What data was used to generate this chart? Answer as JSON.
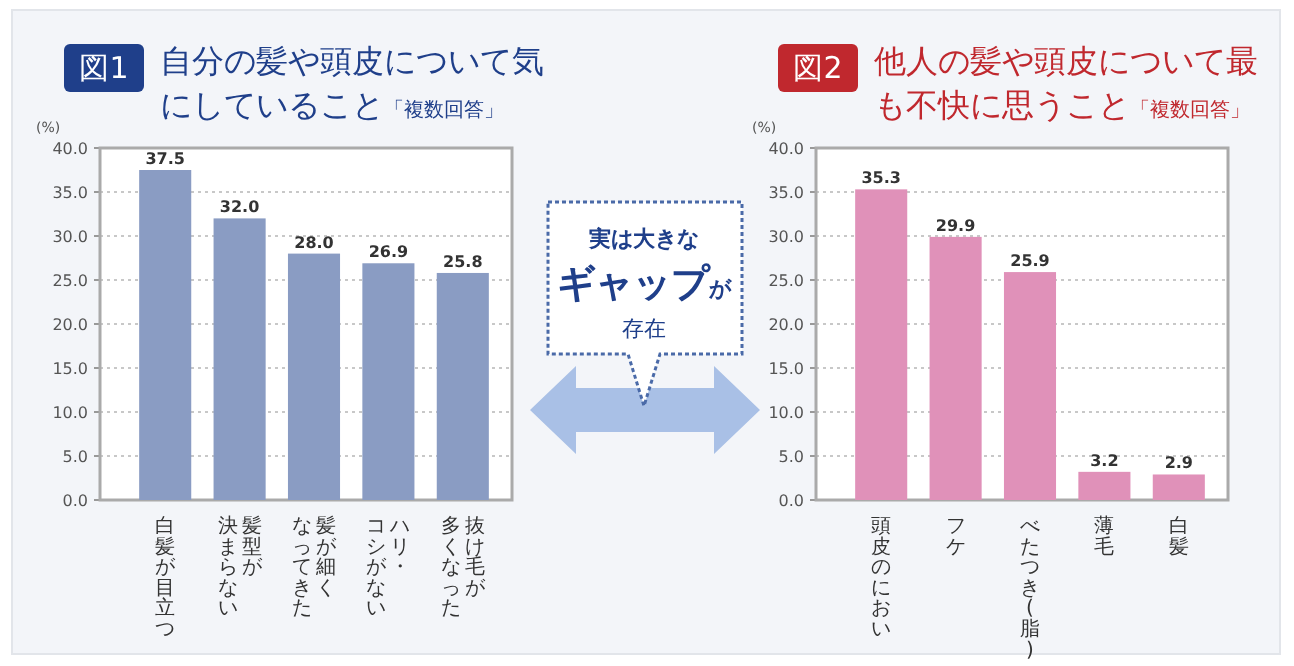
{
  "chart_data": [
    {
      "type": "bar",
      "title": "自分の髪や頭皮について気にしていること",
      "subtitle": "「複数回答」",
      "ylabel": "(%)",
      "annotations": [
        "図1"
      ],
      "categories": [
        "白髪が目立つ",
        "髪型が決まらない",
        "髪が細くなってきた",
        "ハリ・コシがない",
        "抜け毛が多くなった"
      ],
      "values": [
        37.5,
        32.0,
        28.0,
        26.9,
        25.8
      ],
      "value_labels": [
        "37.5",
        "32.0",
        "28.0",
        "26.9",
        "25.8"
      ],
      "color": "#8a9cc3",
      "ylim": [
        0,
        40
      ],
      "yticks": [
        {
          "value": 0,
          "label": "0.0"
        },
        {
          "value": 5,
          "label": "5.0"
        },
        {
          "value": 10,
          "label": "10.0"
        },
        {
          "value": 15,
          "label": "15.0"
        },
        {
          "value": 20,
          "label": "20.0"
        },
        {
          "value": 25,
          "label": "25.0"
        },
        {
          "value": 30,
          "label": "30.0"
        },
        {
          "value": 35,
          "label": "35.0"
        },
        {
          "value": 40,
          "label": "40.0"
        }
      ],
      "grid": "y"
    },
    {
      "type": "bar",
      "title": "他人の髪や頭皮について最も不快に思うこと",
      "subtitle": "「複数回答」",
      "ylabel": "(%)",
      "annotations": [
        "図2"
      ],
      "categories": [
        "頭皮のにおい",
        "フケ",
        "べたつき(脂)",
        "薄毛",
        "白髪"
      ],
      "values": [
        35.3,
        29.9,
        25.9,
        3.2,
        2.9
      ],
      "value_labels": [
        "35.3",
        "29.9",
        "25.9",
        "3.2",
        "2.9"
      ],
      "color": "#e091b9",
      "ylim": [
        0,
        40
      ],
      "yticks": [
        {
          "value": 0,
          "label": "0.0"
        },
        {
          "value": 5,
          "label": "5.0"
        },
        {
          "value": 10,
          "label": "10.0"
        },
        {
          "value": 15,
          "label": "15.0"
        },
        {
          "value": 20,
          "label": "20.0"
        },
        {
          "value": 25,
          "label": "25.0"
        },
        {
          "value": 30,
          "label": "30.0"
        },
        {
          "value": 35,
          "label": "35.0"
        },
        {
          "value": 40,
          "label": "40.0"
        }
      ],
      "grid": "y"
    },
    {
      "type": "other",
      "annotations": [
        "実は大きな",
        "ギャップ",
        "が",
        "存在"
      ]
    }
  ]
}
